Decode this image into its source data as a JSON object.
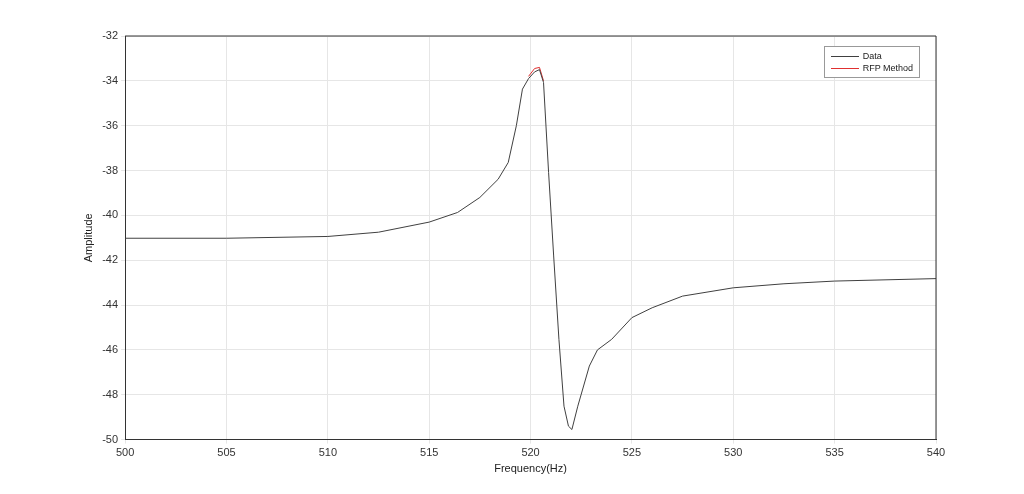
{
  "chart_data": {
    "type": "line",
    "xlabel": "Frequency(Hz)",
    "ylabel": "Amplitude",
    "xlim": [
      500,
      540
    ],
    "ylim": [
      -50,
      -32
    ],
    "xticks": [
      500,
      505,
      510,
      515,
      520,
      525,
      530,
      535,
      540
    ],
    "yticks": [
      -50,
      -48,
      -46,
      -44,
      -42,
      -40,
      -38,
      -36,
      -34,
      -32
    ],
    "grid": true,
    "legend": "top right",
    "marker": "none",
    "line_style": "solid",
    "x": [
      500,
      505,
      510,
      512.5,
      515,
      516.4,
      517.5,
      518.4,
      518.9,
      519.3,
      519.6,
      519.9,
      520.2,
      520.44,
      520.64,
      520.89,
      521.14,
      521.4,
      521.65,
      521.87,
      522.04,
      522.33,
      522.9,
      523.3,
      524,
      525,
      526,
      527.5,
      530,
      532.5,
      535,
      540
    ],
    "series": [
      {
        "name": "Data",
        "color": "#404040",
        "values": [
          -41.02,
          -41.02,
          -40.94,
          -40.75,
          -40.3,
          -39.87,
          -39.2,
          -38.39,
          -37.64,
          -36.0,
          -34.37,
          -33.9,
          -33.6,
          -33.5,
          -34.07,
          -38.08,
          -41.81,
          -45.53,
          -48.51,
          -49.4,
          -49.55,
          -48.51,
          -46.72,
          -46.0,
          -45.53,
          -44.56,
          -44.12,
          -43.6,
          -43.23,
          -43.05,
          -42.93,
          -42.82
        ]
      },
      {
        "name": "RFP Method",
        "color": "#e03030",
        "values": [
          null,
          null,
          null,
          null,
          null,
          null,
          null,
          null,
          null,
          null,
          null,
          -33.8,
          -33.45,
          -33.4,
          -34.0,
          null,
          null,
          null,
          null,
          null,
          null,
          null,
          null,
          null,
          null,
          null,
          null,
          null,
          null,
          null,
          null,
          null
        ]
      }
    ]
  }
}
